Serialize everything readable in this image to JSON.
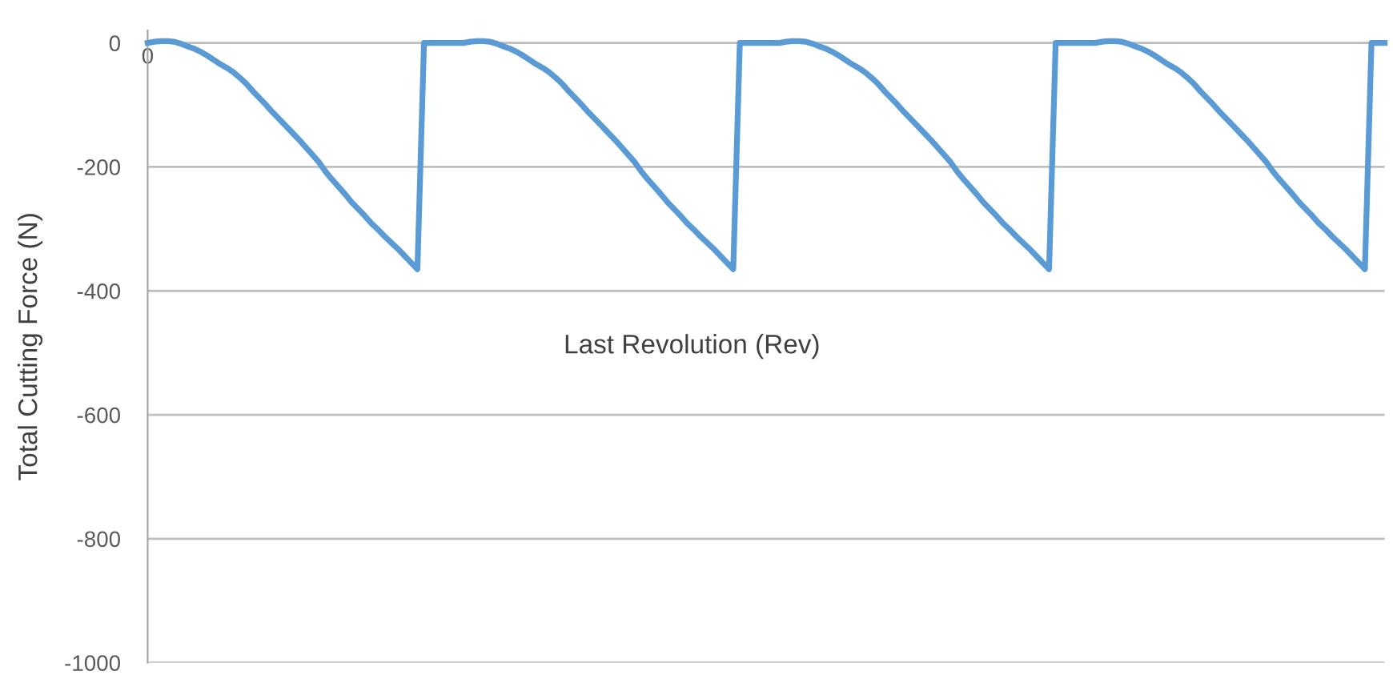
{
  "chart_data": {
    "type": "line",
    "ylabel": "Total Cutting Force (N)",
    "xlabel": "Last Revolution (Rev)",
    "ylim": [
      -1000,
      20
    ],
    "yticks": [
      -1000,
      -800,
      -600,
      -400,
      -200,
      0
    ],
    "grid": "y",
    "marker": "none",
    "line_style": "solid",
    "categories": [
      "0",
      null,
      null,
      null,
      null,
      null,
      null,
      null,
      null,
      null,
      null,
      null,
      null,
      null,
      null,
      null,
      null,
      null,
      null,
      null,
      null,
      null,
      null,
      null,
      null,
      null,
      null,
      null,
      null,
      null,
      null,
      null,
      null,
      null,
      null,
      null,
      null,
      null,
      null,
      null,
      null,
      null,
      null,
      null,
      null,
      null,
      null,
      null,
      null,
      null,
      null,
      null,
      null,
      null,
      null,
      null,
      null,
      null,
      null,
      null,
      null,
      null,
      null,
      null,
      null,
      null,
      null,
      null,
      null,
      null,
      null,
      null,
      null,
      null,
      null,
      null,
      null,
      null,
      null,
      null,
      null,
      null,
      null,
      null,
      null,
      null,
      null,
      null,
      null,
      null,
      null,
      null,
      null,
      null,
      null,
      null,
      null,
      null,
      null,
      null,
      null,
      null,
      null,
      null,
      null,
      null,
      null,
      null,
      null,
      null,
      null,
      null,
      null,
      null,
      null,
      null,
      null,
      null,
      null,
      null,
      null,
      null,
      null,
      null,
      null,
      null,
      null,
      null,
      null,
      null,
      null,
      null,
      null,
      null,
      null,
      null,
      null,
      null,
      null,
      null,
      null,
      null,
      null,
      null,
      null,
      null,
      null,
      null,
      null,
      null,
      null,
      null,
      null,
      null,
      null,
      null,
      null,
      null,
      null,
      null,
      null,
      null,
      null,
      null,
      null,
      null,
      null,
      null,
      null,
      null,
      null,
      null,
      null,
      null,
      null,
      null,
      null,
      null,
      null,
      null,
      null,
      null,
      null,
      null,
      null,
      null,
      null,
      null,
      null
    ],
    "series": [
      {
        "color": "#5b9bd5",
        "values": [
          0,
          2,
          3,
          3,
          2,
          -1,
          -5,
          -9,
          -14,
          -20,
          -27,
          -34,
          -40,
          -47,
          -56,
          -66,
          -78,
          -89,
          -100,
          -112,
          -123,
          -134,
          -145,
          -156,
          -168,
          -180,
          -192,
          -207,
          -220,
          -232,
          -244,
          -257,
          -268,
          -279,
          -291,
          -301,
          -312,
          -322,
          -332,
          -343,
          -354,
          -365,
          0,
          0,
          0,
          0,
          0,
          0,
          0,
          2,
          3,
          3,
          2,
          -1,
          -5,
          -9,
          -14,
          -20,
          -27,
          -34,
          -40,
          -47,
          -56,
          -66,
          -78,
          -89,
          -100,
          -112,
          -123,
          -134,
          -145,
          -156,
          -168,
          -180,
          -192,
          -207,
          -220,
          -232,
          -244,
          -257,
          -268,
          -279,
          -291,
          -301,
          -312,
          -322,
          -332,
          -343,
          -354,
          -365,
          0,
          0,
          0,
          0,
          0,
          0,
          0,
          2,
          3,
          3,
          2,
          -1,
          -5,
          -9,
          -14,
          -20,
          -27,
          -34,
          -40,
          -47,
          -56,
          -66,
          -78,
          -89,
          -100,
          -112,
          -123,
          -134,
          -145,
          -156,
          -168,
          -180,
          -192,
          -207,
          -220,
          -232,
          -244,
          -257,
          -268,
          -279,
          -291,
          -301,
          -312,
          -322,
          -332,
          -343,
          -354,
          -365,
          0,
          0,
          0,
          0,
          0,
          0,
          0,
          2,
          3,
          3,
          2,
          -1,
          -5,
          -9,
          -14,
          -20,
          -27,
          -34,
          -40,
          -47,
          -56,
          -66,
          -78,
          -89,
          -100,
          -112,
          -123,
          -134,
          -145,
          -156,
          -168,
          -180,
          -192,
          -207,
          -220,
          -232,
          -244,
          -257,
          -268,
          -279,
          -291,
          -301,
          -312,
          -322,
          -332,
          -343,
          -354,
          -365,
          0,
          0,
          0
        ]
      }
    ]
  }
}
